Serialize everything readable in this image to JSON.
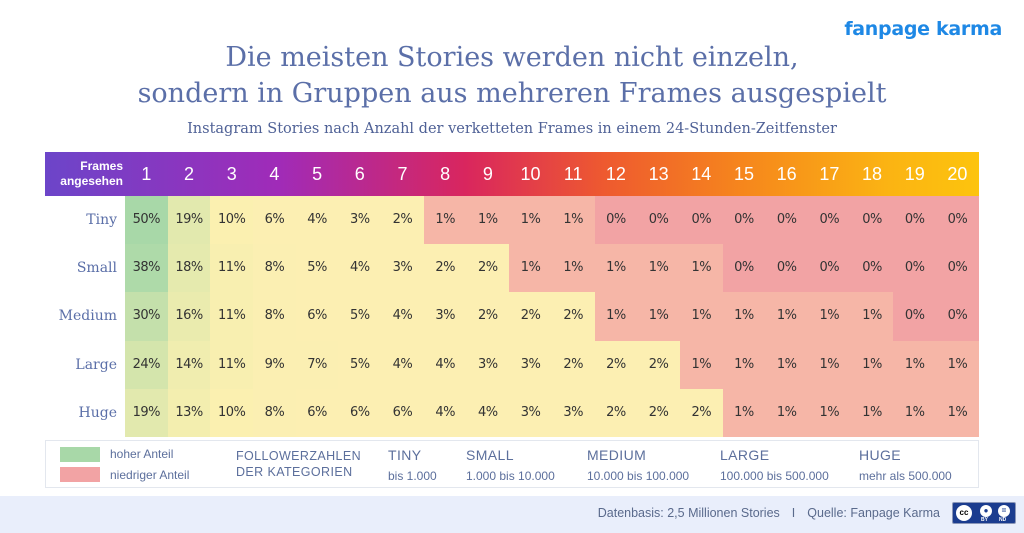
{
  "brand": "fanpage karma",
  "title_lines": [
    "Die meisten Stories werden nicht einzeln,",
    "sondern in Gruppen aus mehreren Frames ausgespielt"
  ],
  "subtitle": "Instagram Stories nach Anzahl der verketteten Frames in einem 24-Stunden-Zeitfenster",
  "chart_data": {
    "type": "heatmap",
    "title": "Die meisten Stories werden nicht einzeln, sondern in Gruppen aus mehreren Frames ausgespielt",
    "subtitle": "Instagram Stories nach Anzahl der verketteten Frames in einem 24-Stunden-Zeitfenster",
    "xlabel": "Frames angesehen",
    "x": [
      "1",
      "2",
      "3",
      "4",
      "5",
      "6",
      "7",
      "8",
      "9",
      "10",
      "11",
      "12",
      "13",
      "14",
      "15",
      "16",
      "17",
      "18",
      "19",
      "20"
    ],
    "y": [
      "Tiny",
      "Small",
      "Medium",
      "Large",
      "Huge"
    ],
    "unit": "%",
    "values": [
      [
        50,
        19,
        10,
        6,
        4,
        3,
        2,
        1,
        1,
        1,
        1,
        0,
        0,
        0,
        0,
        0,
        0,
        0,
        0,
        0
      ],
      [
        38,
        18,
        11,
        8,
        5,
        4,
        3,
        2,
        2,
        1,
        1,
        1,
        1,
        1,
        0,
        0,
        0,
        0,
        0,
        0
      ],
      [
        30,
        16,
        11,
        8,
        6,
        5,
        4,
        3,
        2,
        2,
        2,
        1,
        1,
        1,
        1,
        1,
        1,
        1,
        0,
        0
      ],
      [
        24,
        14,
        11,
        9,
        7,
        5,
        4,
        4,
        3,
        3,
        2,
        2,
        2,
        1,
        1,
        1,
        1,
        1,
        1,
        1
      ],
      [
        19,
        13,
        10,
        8,
        6,
        6,
        6,
        4,
        4,
        3,
        3,
        2,
        2,
        2,
        1,
        1,
        1,
        1,
        1,
        1
      ]
    ],
    "colorscale": {
      "high": "#a8d8a8",
      "mid": "#fbf0b0",
      "low": "#f2a3a4"
    }
  },
  "header": {
    "corner_label_1": "Frames",
    "corner_label_2": "angesehen"
  },
  "legend": {
    "high_label": "hoher Anteil",
    "low_label": "niedriger Anteil",
    "high_color": "#a8d8a8",
    "low_color": "#f2a3a4",
    "categories_title_1": "FOLLOWERZAHLEN",
    "categories_title_2": "DER KATEGORIEN",
    "categories": [
      {
        "name": "TINY",
        "range": "bis 1.000"
      },
      {
        "name": "SMALL",
        "range": "1.000 bis 10.000"
      },
      {
        "name": "MEDIUM",
        "range": "10.000 bis 100.000"
      },
      {
        "name": "LARGE",
        "range": "100.000 bis 500.000"
      },
      {
        "name": "HUGE",
        "range": "mehr als 500.000"
      }
    ]
  },
  "footer": {
    "data_basis": "Datenbasis: 2,5 Millionen Stories",
    "separator": "I",
    "source": "Quelle: Fanpage Karma",
    "license_icon": "cc-by-nd-icon",
    "license_cc": "cc",
    "license_by": "BY",
    "license_nd": "ND"
  }
}
